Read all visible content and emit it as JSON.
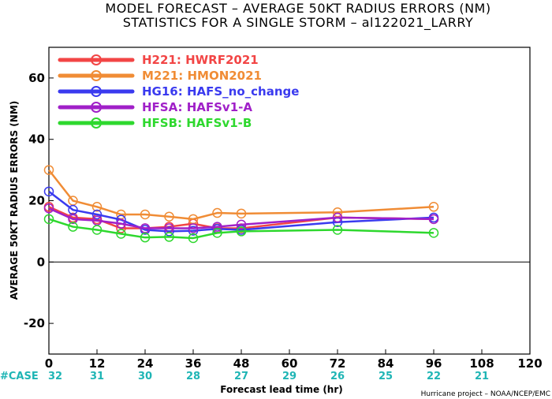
{
  "chart_data": {
    "type": "line",
    "title": "MODEL FORECAST – AVERAGE 50KT RADIUS ERRORS (NM)",
    "subtitle": "STATISTICS FOR A SINGLE STORM – al122021_LARRY",
    "xlabel": "Forecast lead time (hr)",
    "ylabel": "AVERAGE 50KT RADIUS ERRORS (NM)",
    "xlim": [
      0,
      120
    ],
    "ylim": [
      -30,
      70
    ],
    "xticks": [
      "0",
      "12",
      "24",
      "36",
      "48",
      "60",
      "72",
      "84",
      "96",
      "108",
      "120"
    ],
    "yticks": [
      "-20",
      "0",
      "20",
      "40",
      "60"
    ],
    "case_label": "#CASE",
    "cases": {
      "x": [
        0,
        12,
        24,
        36,
        48,
        60,
        72,
        84,
        96,
        108
      ],
      "values": [
        "32",
        "31",
        "30",
        "28",
        "27",
        "29",
        "26",
        "25",
        "22",
        "21"
      ]
    },
    "credit": "Hurricane project – NOAA/NCEP/EMC",
    "series": [
      {
        "name": "H221:  HWRF2021",
        "color": "#f24545",
        "x": [
          0,
          6,
          12,
          18,
          24,
          30,
          36,
          42,
          48,
          72,
          96
        ],
        "y": [
          18,
          14.5,
          14,
          11,
          11,
          11.5,
          12.5,
          11,
          11,
          14.5,
          14
        ]
      },
      {
        "name": "M221:  HMON2021",
        "color": "#f08c35",
        "x": [
          0,
          6,
          12,
          18,
          24,
          30,
          36,
          42,
          48,
          72,
          96
        ],
        "y": [
          30,
          20,
          18,
          15.5,
          15.5,
          14.8,
          14,
          16,
          15.8,
          16.2,
          18
        ]
      },
      {
        "name": "HG16:  HAFS_no_change",
        "color": "#3a3aef",
        "x": [
          0,
          6,
          12,
          18,
          24,
          30,
          36,
          42,
          48,
          72,
          96
        ],
        "y": [
          23,
          17,
          15.5,
          13.8,
          10.5,
          10,
          10.2,
          10.8,
          10.5,
          13,
          14.5
        ]
      },
      {
        "name": "HFSA:  HAFSv1-A",
        "color": "#a020c8",
        "x": [
          0,
          6,
          12,
          18,
          24,
          30,
          36,
          42,
          48,
          72,
          96
        ],
        "y": [
          17.5,
          14,
          13.5,
          12.5,
          11,
          11,
          11,
          11.5,
          12.2,
          14.5,
          14
        ]
      },
      {
        "name": "HFSB:  HAFSv1-B",
        "color": "#2ed82e",
        "x": [
          0,
          6,
          12,
          18,
          24,
          30,
          36,
          42,
          48,
          72,
          96
        ],
        "y": [
          14,
          11.5,
          10.5,
          9.2,
          8,
          8.2,
          7.8,
          9.5,
          10,
          10.5,
          9.5
        ]
      }
    ],
    "legend": "top-left",
    "grid": false
  }
}
